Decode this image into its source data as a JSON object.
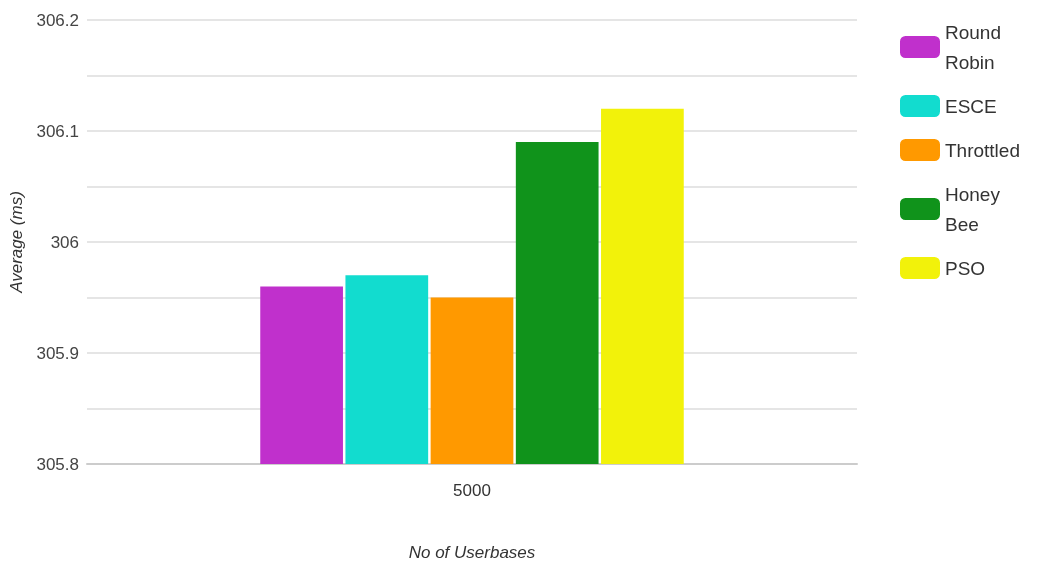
{
  "chart_data": {
    "type": "bar",
    "xlabel": "No of Userbases",
    "ylabel": "Average (ms)",
    "categories": [
      "5000"
    ],
    "series": [
      {
        "name": "Round Robin",
        "color": "#c030cc",
        "values": [
          305.96
        ]
      },
      {
        "name": "ESCE",
        "color": "#12dccf",
        "values": [
          305.97
        ]
      },
      {
        "name": "Throttled",
        "color": "#ff9900",
        "values": [
          305.95
        ]
      },
      {
        "name": "Honey Bee",
        "color": "#10931b",
        "values": [
          306.09
        ]
      },
      {
        "name": "PSO",
        "color": "#f2f20a",
        "values": [
          306.12
        ]
      }
    ],
    "ylim": [
      305.8,
      306.2
    ],
    "yticks": [
      305.8,
      {
        "value": 305.85,
        "label": null
      },
      305.9,
      {
        "value": 305.95,
        "label": null
      },
      306,
      {
        "value": 306.05,
        "label": null
      },
      306.1,
      {
        "value": 306.15,
        "label": null
      },
      306.2
    ],
    "grid": "y",
    "legend": "right"
  }
}
